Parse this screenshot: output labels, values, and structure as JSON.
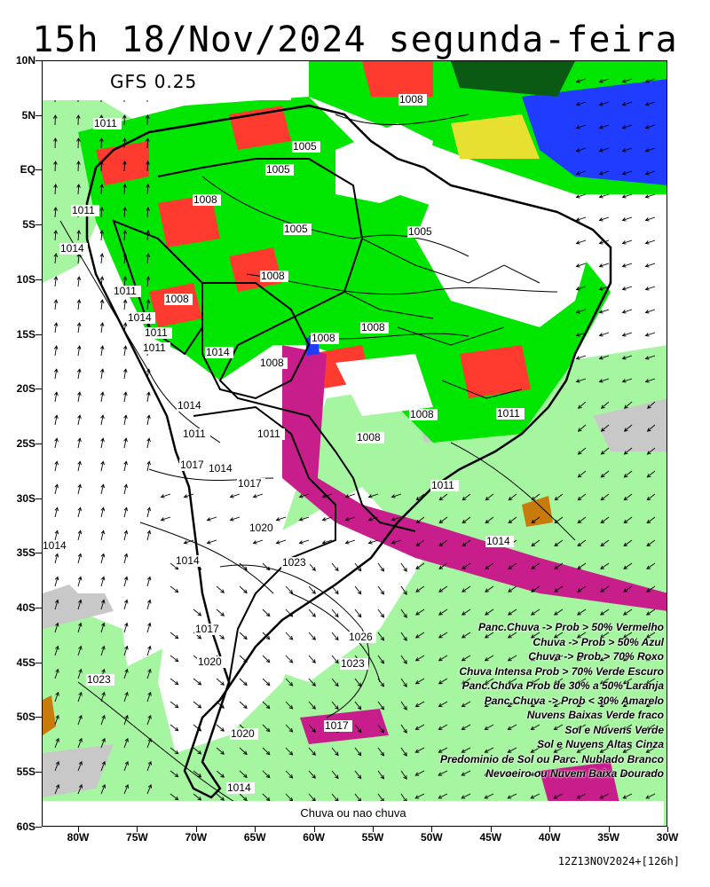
{
  "header": {
    "title": "15h 18/Nov/2024 segunda-feira",
    "model": "GFS 0.25"
  },
  "map": {
    "lat_labels": [
      "10N",
      "5N",
      "EQ",
      "5S",
      "10S",
      "15S",
      "20S",
      "25S",
      "30S",
      "35S",
      "40S",
      "45S",
      "50S",
      "55S",
      "60S"
    ],
    "lon_labels": [
      "80W",
      "75W",
      "70W",
      "65W",
      "60W",
      "55W",
      "50W",
      "45W",
      "40W",
      "35W",
      "30W"
    ],
    "isobars": [
      {
        "text": "1008"
      },
      {
        "text": "1011"
      },
      {
        "text": "1005"
      },
      {
        "text": "1005"
      },
      {
        "text": "1008"
      },
      {
        "text": "1011"
      },
      {
        "text": "1014"
      },
      {
        "text": "1005"
      },
      {
        "text": "1005"
      },
      {
        "text": "1008"
      },
      {
        "text": "1011"
      },
      {
        "text": "1008"
      },
      {
        "text": "1014"
      },
      {
        "text": "1011"
      },
      {
        "text": "1011"
      },
      {
        "text": "1014"
      },
      {
        "text": "1008"
      },
      {
        "text": "1008"
      },
      {
        "text": "1008"
      },
      {
        "text": "1008"
      },
      {
        "text": "1011"
      },
      {
        "text": "1014"
      },
      {
        "text": "1011"
      },
      {
        "text": "1008"
      },
      {
        "text": "1017"
      },
      {
        "text": "1014"
      },
      {
        "text": "1017"
      },
      {
        "text": "1014"
      },
      {
        "text": "1020"
      },
      {
        "text": "1023"
      },
      {
        "text": "1014"
      },
      {
        "text": "1014"
      },
      {
        "text": "1017"
      },
      {
        "text": "1026"
      },
      {
        "text": "1023"
      },
      {
        "text": "1020"
      },
      {
        "text": "1023"
      },
      {
        "text": "1017"
      },
      {
        "text": "1020"
      },
      {
        "text": "1014"
      },
      {
        "text": "1011"
      },
      {
        "text": "1011"
      }
    ]
  },
  "legend": {
    "items": [
      {
        "label": "Panc.Chuva -> Prob > 50% Vermelho"
      },
      {
        "label": "Chuva -> Prob > 50% Azul"
      },
      {
        "label": "Chuva -> Prob > 70% Roxo"
      },
      {
        "label": "Chuva Intensa Prob > 70% Verde Escuro"
      },
      {
        "label": "Panc.Chuva Prob de 30% a 50% Laranja"
      },
      {
        "label": "Panc.Chuva -> Prob < 30% Amarelo"
      },
      {
        "label": "Nuvens Baixas Verde fraco"
      },
      {
        "label": "Sol e Nuvens Verde"
      },
      {
        "label": "Sol e Nuvens Altas Cinza"
      },
      {
        "label": "Predominio de Sol ou Parc. Nublado Branco"
      },
      {
        "label": "Nevoeiro ou Nuvem Baixa Dourado"
      }
    ],
    "colors": {
      "vermelho": "#ff3b2f",
      "azul": "#1f3cff",
      "roxo": "#c81e8c",
      "verde_escuro": "#0b5a14",
      "laranja": "#ff8a1e",
      "amarelo": "#e8e030",
      "verde_fraco": "#a6f5a0",
      "verde": "#00e600",
      "cinza": "#c8c8c8",
      "branco": "#ffffff",
      "dourado": "#c87a0a"
    }
  },
  "footer": {
    "text": "Chuva ou nao chuva",
    "run_info": "12Z13NOV2024+[126h]"
  }
}
